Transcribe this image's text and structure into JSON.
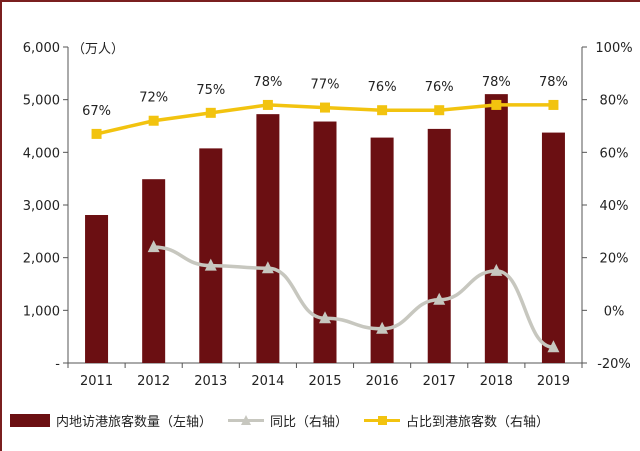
{
  "chart_data": {
    "type": "bar+line",
    "categories": [
      "2011",
      "2012",
      "2013",
      "2014",
      "2015",
      "2016",
      "2017",
      "2018",
      "2019"
    ],
    "left_axis": {
      "unit_label": "（万人）",
      "ylim": [
        0,
        6000
      ],
      "ticks": [
        "-",
        "1,000",
        "2,000",
        "3,000",
        "4,000",
        "5,000",
        "6,000"
      ]
    },
    "right_axis": {
      "ylim": [
        -20,
        100
      ],
      "ticks": [
        "-20%",
        "0%",
        "20%",
        "40%",
        "60%",
        "80%",
        "100%"
      ]
    },
    "series": [
      {
        "name": "内地访港旅客数量（左轴）",
        "kind": "bar",
        "axis": "left",
        "color": "#6b0f12",
        "values": [
          2810,
          3490,
          4075,
          4725,
          4585,
          4280,
          4445,
          5105,
          4375
        ]
      },
      {
        "name": "同比（右轴）",
        "kind": "line",
        "axis": "right",
        "color": "#c7c7bf",
        "marker": "triangle",
        "values": [
          null,
          24,
          17,
          16,
          -3,
          -7,
          4,
          15,
          -14
        ]
      },
      {
        "name": "占比到港旅客数（右轴）",
        "kind": "line",
        "axis": "right",
        "color": "#f2c30f",
        "marker": "square",
        "values": [
          67,
          72,
          75,
          78,
          77,
          76,
          76,
          78,
          78
        ],
        "labels": [
          "67%",
          "72%",
          "75%",
          "78%",
          "77%",
          "76%",
          "76%",
          "78%",
          "78%"
        ]
      }
    ],
    "grid": false,
    "legend_position": "bottom"
  }
}
